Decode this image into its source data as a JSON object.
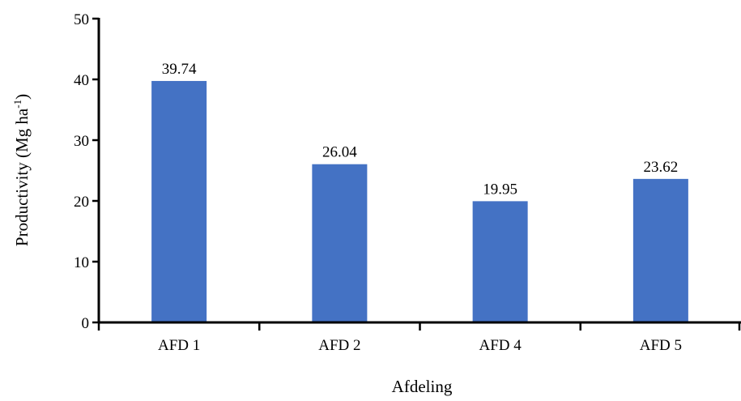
{
  "chart_data": {
    "type": "bar",
    "categories": [
      "AFD 1",
      "AFD 2",
      "AFD 4",
      "AFD 5"
    ],
    "values": [
      39.74,
      26.04,
      19.95,
      23.62
    ],
    "value_labels": [
      "39.74",
      "26.04",
      "19.95",
      "23.62"
    ],
    "title": "",
    "xlabel": "Afdeling",
    "ylabel_main": "Productivity (Mg ha",
    "ylabel_sup": "-1",
    "ylabel_end": ")",
    "ylim": [
      0,
      50
    ],
    "yticks": [
      0,
      10,
      20,
      30,
      40,
      50
    ],
    "grid": false,
    "legend": "none",
    "colors": {
      "bar": "#4472c4",
      "axis": "#000000"
    }
  }
}
